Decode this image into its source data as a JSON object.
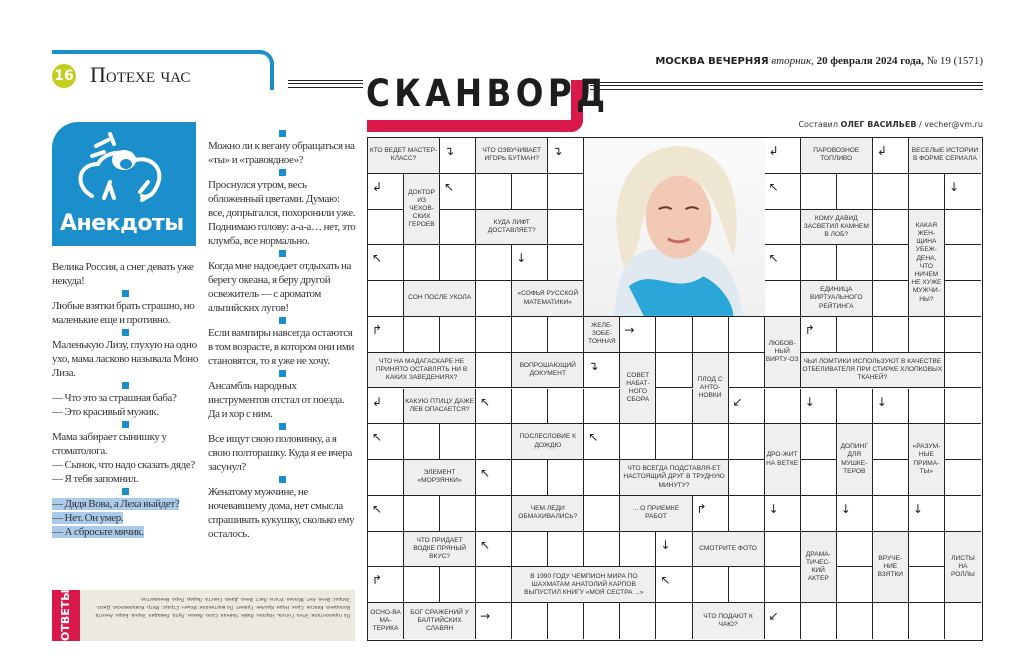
{
  "page": {
    "number": "16",
    "section": "Потехе час"
  },
  "masthead": {
    "paper": "МОСКВА ВЕЧЕРНЯЯ",
    "weekday": "вторник,",
    "date": "20 февраля 2024 года,",
    "issue": "№ 19 (1571)"
  },
  "jokes": {
    "heading": "Анекдоты",
    "col1": [
      [
        "Велика Россия, а снег девать уже некуда!"
      ],
      [
        "Любые взятки брать страшно, но маленькие еще и противно."
      ],
      [
        "Маленькую Лизу, глухую на одно ухо, мама ласково называла Моно Лиза."
      ],
      [
        "— Что это за страшная баба?",
        "— Это красивый мужик."
      ],
      [
        "Мама забирает сынишку у стоматолога.",
        "— Сынок, что надо сказать дяде?",
        "— Я тебя запомнил."
      ]
    ],
    "highlighted": [
      "— Дядя Вова, а Леха выйдет?",
      "— Нет. Он умер.",
      "— А сбросьте мячик."
    ],
    "col2": [
      [
        "Можно ли к вегану обращаться на «ты» и «травоядное»?"
      ],
      [
        "Проснулся утром, весь обложенный цветами. Думаю: все, допрыгался, похоронили уже. Поднимаю голову: а-а-а… нет, это клумба, все нормально."
      ],
      [
        "Когда мне надоедает отдыхать на берегу океана, я беру другой освежитель — с ароматом альпийских лугов!"
      ],
      [
        "Если вампиры навсегда остаются в том возрасте, в котором они ими становятся, то я уже не хочу."
      ],
      [
        "Ансамбль народных инструментов отстал от поезда.",
        "Да и хор с ним."
      ],
      [
        "Все ищут свою половинку, а я свою полторашку. Куда я ее вчера засунул?"
      ],
      [
        "Женатому мужчине, не ночевавшему дома, нет смысла спрашивать кукушку, сколько ему осталось."
      ]
    ]
  },
  "answers": {
    "label": "ОТВЕТЫ",
    "text": "По горизонтали: Этна. Гоголь. Нарзан. Лайм. Чайная. Сало. Лимон. Лупа. Ливадия. Зерна. Бюро. Анкета. Володина. Квасок. Срок. Нори. Кролик. Гранит. По вертикали: Ильич. Страус. Мэтр. Ковалевская. Джаз. Запрос. Вече. Ант. Яблоко. Угоги. Лист. Вено. Дама. Сиеста. Лидер. Перо. Вековистое."
  },
  "scanword": {
    "title": "СКАНВОРД",
    "author_prefix": "Составил",
    "author": "ОЛЕГ ВАСИЛЬЕВ",
    "email": "/ vecher@vm.ru",
    "clues": [
      "КТО ВЕДЕТ МАСТЕР-КЛАСС?",
      "ЧТО ОЗВУЧИВАЕТ ИГОРЬ БУТМАН?",
      "ДОКТОР ИЗ ЧЕХОВ-СКИХ ГЕРОЕВ",
      "КУДА ЛИФТ ДОСТАВЛЯЕТ?",
      "СОН ПОСЛЕ УКОЛА",
      "«СОФЬЯ РУССКОЙ МАТЕМАТИКИ»",
      "ПАРОВОЗНОЕ ТОПЛИВО",
      "ВЕСЕЛЫЕ ИСТОРИИ В ФОРМЕ СЕРИАЛА",
      "КОМУ ДАВИД ЗАСВЕТИЛ КАМНЕМ В ЛОБ?",
      "КАКАЯ ЖЕН-ЩИНА УБЕЖ-ДЕНА, ЧТО НИЧЕМ НЕ ХУЖЕ МУЖЧИ-НЫ?",
      "ЕДИНИЦА ВИРТУАЛЬНОГО РЕЙТИНГА",
      "ЖЕЛЕ-ЗОБЕ-ТОННАЯ",
      "ЛЮБОВ-НЫЙ ВИРТУ-ОЗ",
      "ЧТО НА МАДАГАСКАРЕ НЕ ПРИНЯТО ОСТАВЛЯТЬ НИ В КАКИХ ЗАВЕДЕНИЯХ?",
      "ВОПРОШАЮЩИЙ ДОКУМЕНТ",
      "СОВЕТ НАБАТ-НОГО СБОРА",
      "ПЛОД С АНТО-НОВКИ",
      "ЧЬИ ЛОМТИКИ ИСПОЛЬЗУЮТ В КАЧЕСТВЕ ОТБЕЛИВАТЕЛЯ ПРИ СТИРКЕ ХЛОПКОВЫХ ТКАНЕЙ?",
      "КАКУЮ ПТИЦУ ДАЖЕ ЛЕВ ОПАСАЕТСЯ?",
      "ПОСЛЕСЛОВИЕ К ДОЖДЮ",
      "ДРО-ЖИТ НА ВЕТКЕ",
      "ДОПИНГ ДЛЯ МУШКЕ-ТЕРОВ",
      "«РАЗУМ-НЫЕ ПРИМА-ТЫ»",
      "ЭЛЕМЕНТ «МОРЗЯНКИ»",
      "ЧТО ВСЕГДА ПОДСТАВЛЯ-ЕТ НАСТОЯЩИЙ ДРУГ В ТРУДНУЮ МИНУТУ?",
      "ЧЕМ ЛЕДИ ОБМАХИВАЛИСЬ?",
      "... О ПРИЕМКЕ РАБОТ",
      "ЧТО ПРИДАЕТ ВОДКЕ ПРЯНЫЙ ВКУС?",
      "СМОТРИТЕ ФОТО",
      "ДРАМА-ТИЧЕС-КИЙ АКТЕР",
      "ВРУЧЕ-НИЕ ВЗЯТКИ",
      "ЛИСТЫ НА РОЛЛЫ",
      "В 1990 ГОДУ ЧЕМПИОН МИРА ПО ШАХМАТАМ АНАТОЛИЙ КАРПОВ ВЫПУСТИЛ КНИГУ «МОЯ СЕСТРА ...»",
      "ОСНО-ВА МА-ТЕРИКА",
      "БОГ СРАЖЕНИЙ У БАЛТИЙСКИХ СЛАВЯН",
      "ЧТО ПОДАЮТ К ЧАЮ?"
    ]
  },
  "colors": {
    "accent_blue": "#1a8fcb",
    "accent_red": "#d8194a",
    "page_badge": "#c3cd1f",
    "selection": "#a9cbe9"
  }
}
